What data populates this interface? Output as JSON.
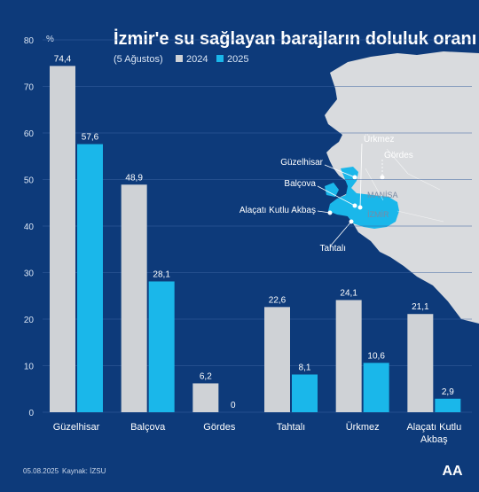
{
  "title": "İzmir'e su sağlayan barajların doluluk oranı",
  "subtitle": "(5 Ağustos)",
  "unit": "%",
  "footer": {
    "date": "05.08.2025",
    "source": "Kaynak: İZSU"
  },
  "logo": {
    "text": "AA"
  },
  "map": {
    "labels": [
      "Ürkmez",
      "Gördes",
      "Güzelhisar",
      "Balçova",
      "Alaçatı Kutlu Akbaş",
      "Tahtalı"
    ],
    "regions": [
      "MANİSA",
      "İZMİR"
    ]
  },
  "colors": {
    "2024": "#cfd2d6",
    "2025": "#1ab7ea",
    "background": "#0d3a7a",
    "grid": "#3a62a0",
    "land": "#d9dbde",
    "izmir": "#1ab7ea"
  },
  "chart_data": {
    "type": "bar",
    "categories": [
      "Güzelhisar",
      "Balçova",
      "Gördes",
      "Tahtalı",
      "Ürkmez",
      "Alaçatı Kutlu Akbaş"
    ],
    "series": [
      {
        "name": "2024",
        "values": [
          74.4,
          48.9,
          6.2,
          22.6,
          24.1,
          21.1
        ]
      },
      {
        "name": "2025",
        "values": [
          57.6,
          28.1,
          0,
          8.1,
          10.6,
          2.9
        ]
      }
    ],
    "value_labels": {
      "2024": [
        "74,4",
        "48,9",
        "6,2",
        "22,6",
        "24,1",
        "21,1"
      ],
      "2025": [
        "57,6",
        "28,1",
        "0",
        "8,1",
        "10,6",
        "2,9"
      ]
    },
    "ylim": [
      0,
      80
    ],
    "yticks": [
      0,
      10,
      20,
      30,
      40,
      50,
      60,
      70,
      80
    ],
    "grid": true,
    "legend_position": "top"
  }
}
